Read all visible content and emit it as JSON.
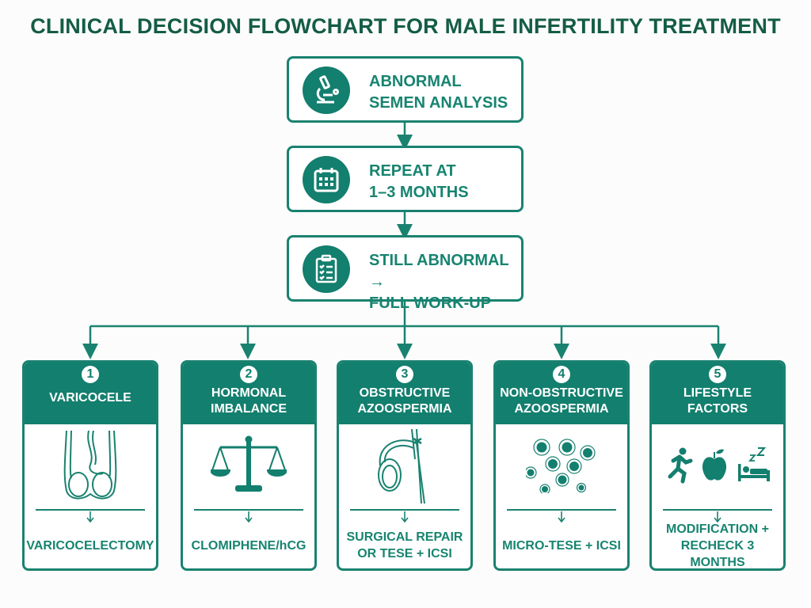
{
  "title": "CLINICAL DECISION FLOWCHART FOR MALE INFERTILITY TREATMENT",
  "colors": {
    "primary": "#137f6e",
    "title": "#145c46",
    "background": "#fbfcfb"
  },
  "steps": [
    {
      "line1": "ABNORMAL",
      "line2": "SEMEN ANALYSIS",
      "icon": "microscope-icon"
    },
    {
      "line1": "REPEAT AT",
      "line2": "1–3 MONTHS",
      "icon": "calendar-icon"
    },
    {
      "line1": "STILL ABNORMAL →",
      "line2": "FULL WORK-UP",
      "icon": "clipboard-checklist-icon"
    }
  ],
  "branches": [
    {
      "number": "1",
      "name1": "VARICOCELE",
      "name2": "",
      "icon": "varicocele-anatomy-icon",
      "treat1": "VARICOCELECTOMY",
      "treat2": ""
    },
    {
      "number": "2",
      "name1": "HORMONAL",
      "name2": "IMBALANCE",
      "icon": "balance-scale-icon",
      "treat1": "CLOMIPHENE/hCG",
      "treat2": ""
    },
    {
      "number": "3",
      "name1": "OBSTRUCTIVE",
      "name2": "AZOOSPERMIA",
      "icon": "blocked-duct-icon",
      "treat1": "SURGICAL REPAIR",
      "treat2": "OR TESE + ICSI"
    },
    {
      "number": "4",
      "name1": "NON-OBSTRUCTIVE",
      "name2": "AZOOSPERMIA",
      "icon": "cells-icon",
      "treat1": "MICRO-TESE + ICSI",
      "treat2": ""
    },
    {
      "number": "5",
      "name1": "LIFESTYLE",
      "name2": "FACTORS",
      "icon": "running-apple-sleep-icon",
      "treat1": "MODIFICATION +",
      "treat2": "RECHECK 3 MONTHS"
    }
  ]
}
